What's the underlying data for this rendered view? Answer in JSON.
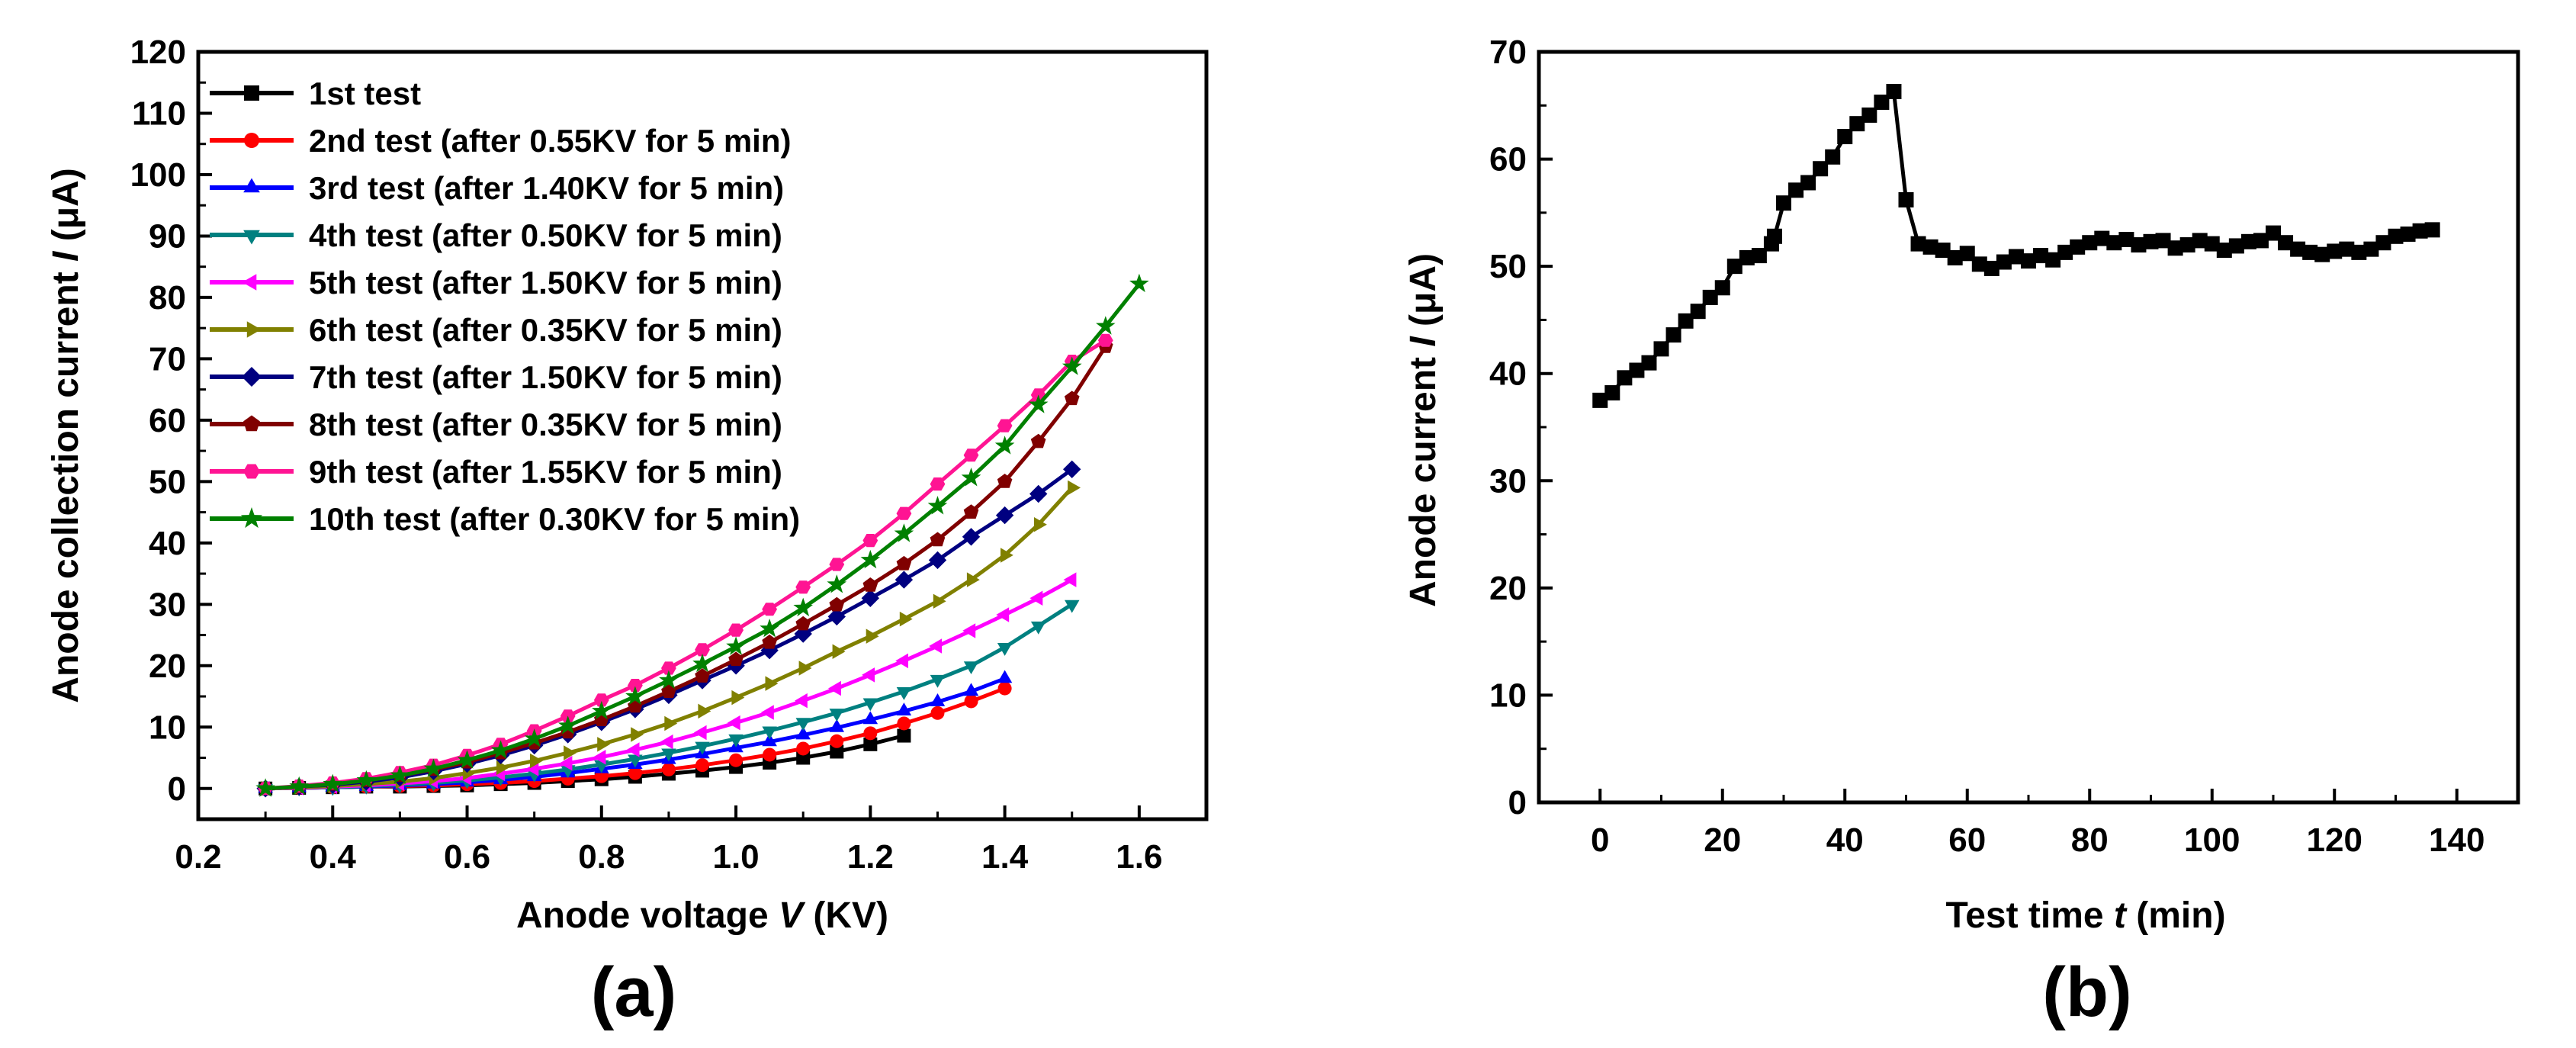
{
  "chart_data": [
    {
      "type": "line",
      "panel_label": "(a)",
      "xlabel": "Anode voltage ",
      "xlabel_italic": "V",
      "xlabel_unit": " (KV)",
      "ylabel": "Anode collection current ",
      "ylabel_italic": "I",
      "ylabel_unit": " (μA)",
      "xlim": [
        0.2,
        1.7
      ],
      "ylim": [
        -5,
        120
      ],
      "xticks": [
        "0.2",
        "0.4",
        "0.6",
        "0.8",
        "1.0",
        "1.2",
        "1.4",
        "1.6"
      ],
      "yticks": [
        "0",
        "10",
        "20",
        "30",
        "40",
        "50",
        "60",
        "70",
        "80",
        "90",
        "100",
        "110",
        "120"
      ],
      "legend_position": "top-left",
      "series": [
        {
          "name": "1st test",
          "color": "#000000",
          "marker": "square",
          "x": [
            0.3,
            0.35,
            0.4,
            0.45,
            0.5,
            0.55,
            0.6,
            0.65,
            0.7,
            0.75,
            0.8,
            0.85,
            0.9,
            0.95,
            1.0,
            1.05,
            1.1,
            1.15,
            1.2,
            1.25
          ],
          "y": [
            0.0,
            0.1,
            0.2,
            0.3,
            0.3,
            0.4,
            0.5,
            0.7,
            0.9,
            1.2,
            1.5,
            1.9,
            2.4,
            2.9,
            3.5,
            4.2,
            5.0,
            6.0,
            7.2,
            8.6
          ]
        },
        {
          "name": "2nd test (after 0.55KV for 5 min)",
          "color": "#ff0000",
          "marker": "circle",
          "x": [
            0.3,
            0.35,
            0.4,
            0.45,
            0.5,
            0.55,
            0.6,
            0.65,
            0.7,
            0.75,
            0.8,
            0.85,
            0.9,
            0.95,
            1.0,
            1.05,
            1.1,
            1.15,
            1.2,
            1.25,
            1.3,
            1.35,
            1.4
          ],
          "y": [
            0.0,
            0.1,
            0.2,
            0.3,
            0.4,
            0.5,
            0.7,
            0.9,
            1.2,
            1.6,
            2.0,
            2.5,
            3.1,
            3.8,
            4.6,
            5.5,
            6.5,
            7.7,
            9.0,
            10.6,
            12.3,
            14.2,
            16.3
          ]
        },
        {
          "name": "3rd test (after 1.40KV for 5 min)",
          "color": "#0000ff",
          "marker": "triangle-up",
          "x": [
            0.3,
            0.35,
            0.4,
            0.45,
            0.5,
            0.55,
            0.6,
            0.65,
            0.7,
            0.75,
            0.8,
            0.85,
            0.9,
            0.95,
            1.0,
            1.05,
            1.1,
            1.15,
            1.2,
            1.25,
            1.3,
            1.35,
            1.4
          ],
          "y": [
            0.0,
            0.1,
            0.2,
            0.3,
            0.5,
            0.7,
            1.0,
            1.4,
            1.9,
            2.5,
            3.2,
            3.9,
            4.7,
            5.6,
            6.6,
            7.6,
            8.7,
            9.9,
            11.2,
            12.6,
            14.1,
            15.8,
            17.9
          ]
        },
        {
          "name": "4th test (after 0.50KV for 5 min)",
          "color": "#008080",
          "marker": "triangle-down",
          "x": [
            0.3,
            0.35,
            0.4,
            0.45,
            0.5,
            0.55,
            0.6,
            0.65,
            0.7,
            0.75,
            0.8,
            0.85,
            0.9,
            0.95,
            1.0,
            1.05,
            1.1,
            1.15,
            1.2,
            1.25,
            1.3,
            1.35,
            1.4,
            1.45,
            1.5
          ],
          "y": [
            0.0,
            0.1,
            0.2,
            0.4,
            0.6,
            0.9,
            1.3,
            1.8,
            2.4,
            3.1,
            3.9,
            4.8,
            5.8,
            6.9,
            8.1,
            9.4,
            10.8,
            12.3,
            14.0,
            15.8,
            17.8,
            20.0,
            23.0,
            26.5,
            30.0
          ]
        },
        {
          "name": "5th test (after 1.50KV for 5 min)",
          "color": "#ff00ff",
          "marker": "triangle-left",
          "x": [
            0.3,
            0.35,
            0.4,
            0.45,
            0.5,
            0.55,
            0.6,
            0.65,
            0.7,
            0.75,
            0.8,
            0.85,
            0.9,
            0.95,
            1.0,
            1.05,
            1.1,
            1.15,
            1.2,
            1.25,
            1.3,
            1.35,
            1.4,
            1.45,
            1.5
          ],
          "y": [
            0.0,
            0.1,
            0.3,
            0.5,
            0.8,
            1.2,
            1.7,
            2.4,
            3.2,
            4.1,
            5.1,
            6.3,
            7.6,
            9.1,
            10.7,
            12.4,
            14.3,
            16.3,
            18.5,
            20.8,
            23.2,
            25.7,
            28.3,
            31.0,
            34.0
          ]
        },
        {
          "name": "6th test (after 0.35KV for 5 min)",
          "color": "#808000",
          "marker": "triangle-right",
          "x": [
            0.3,
            0.35,
            0.4,
            0.45,
            0.5,
            0.55,
            0.6,
            0.65,
            0.7,
            0.75,
            0.8,
            0.85,
            0.9,
            0.95,
            1.0,
            1.05,
            1.1,
            1.15,
            1.2,
            1.25,
            1.3,
            1.35,
            1.4,
            1.45,
            1.5
          ],
          "y": [
            0.0,
            0.2,
            0.4,
            0.7,
            1.1,
            1.7,
            2.5,
            3.4,
            4.5,
            5.8,
            7.2,
            8.8,
            10.6,
            12.6,
            14.8,
            17.1,
            19.6,
            22.3,
            24.8,
            27.6,
            30.5,
            34.0,
            38.0,
            43.0,
            49.0
          ]
        },
        {
          "name": "7th test (after 1.50KV for 5 min)",
          "color": "#000080",
          "marker": "diamond",
          "x": [
            0.3,
            0.35,
            0.4,
            0.45,
            0.5,
            0.55,
            0.6,
            0.65,
            0.7,
            0.75,
            0.8,
            0.85,
            0.9,
            0.95,
            1.0,
            1.05,
            1.1,
            1.15,
            1.2,
            1.25,
            1.3,
            1.35,
            1.4,
            1.45,
            1.5
          ],
          "y": [
            0.0,
            0.3,
            0.6,
            1.1,
            1.8,
            2.8,
            4.0,
            5.4,
            7.0,
            8.8,
            10.8,
            12.9,
            15.2,
            17.6,
            20.0,
            22.5,
            25.2,
            28.0,
            31.0,
            34.0,
            37.2,
            41.0,
            44.5,
            48.0,
            52.0
          ]
        },
        {
          "name": "8th test (after 0.35KV for 5 min)",
          "color": "#800000",
          "marker": "pentagon",
          "x": [
            0.3,
            0.35,
            0.4,
            0.45,
            0.5,
            0.55,
            0.6,
            0.65,
            0.7,
            0.75,
            0.8,
            0.85,
            0.9,
            0.95,
            1.0,
            1.05,
            1.1,
            1.15,
            1.2,
            1.25,
            1.3,
            1.35,
            1.4,
            1.45,
            1.5,
            1.55
          ],
          "y": [
            0.0,
            0.3,
            0.7,
            1.3,
            2.1,
            3.1,
            4.3,
            5.8,
            7.4,
            9.2,
            11.2,
            13.4,
            15.8,
            18.3,
            21.0,
            23.8,
            26.8,
            29.9,
            33.1,
            36.6,
            40.5,
            45.0,
            50.0,
            56.5,
            63.5,
            72.0
          ]
        },
        {
          "name": "9th test (after 1.55KV for 5 min)",
          "color": "#ff1493",
          "marker": "hexagon",
          "x": [
            0.3,
            0.35,
            0.4,
            0.45,
            0.5,
            0.55,
            0.6,
            0.65,
            0.7,
            0.75,
            0.8,
            0.85,
            0.9,
            0.95,
            1.0,
            1.05,
            1.1,
            1.15,
            1.2,
            1.25,
            1.3,
            1.35,
            1.4,
            1.45,
            1.5,
            1.55
          ],
          "y": [
            0.0,
            0.4,
            0.9,
            1.6,
            2.6,
            3.8,
            5.4,
            7.2,
            9.4,
            11.8,
            14.4,
            16.8,
            19.6,
            22.6,
            25.8,
            29.2,
            32.8,
            36.5,
            40.4,
            44.8,
            49.6,
            54.3,
            59.1,
            64.1,
            69.6,
            73.0
          ]
        },
        {
          "name": "10th test (after 0.30KV for 5 min)",
          "color": "#008000",
          "marker": "star",
          "x": [
            0.3,
            0.35,
            0.4,
            0.45,
            0.5,
            0.55,
            0.6,
            0.65,
            0.7,
            0.75,
            0.8,
            0.85,
            0.9,
            0.95,
            1.0,
            1.05,
            1.1,
            1.15,
            1.2,
            1.25,
            1.3,
            1.35,
            1.4,
            1.45,
            1.5,
            1.55,
            1.6
          ],
          "y": [
            0.0,
            0.3,
            0.7,
            1.3,
            2.1,
            3.2,
            4.6,
            6.2,
            8.1,
            10.2,
            12.6,
            15.0,
            17.6,
            20.3,
            23.1,
            26.0,
            29.4,
            33.2,
            37.2,
            41.5,
            46.0,
            50.6,
            55.8,
            62.5,
            68.7,
            75.3,
            82.2
          ]
        }
      ]
    },
    {
      "type": "line",
      "panel_label": "(b)",
      "xlabel": "Test time ",
      "xlabel_italic": "t",
      "xlabel_unit": " (min)",
      "ylabel": "Anode current ",
      "ylabel_italic": "I",
      "ylabel_unit": " (μA)",
      "xlim": [
        -10,
        150
      ],
      "ylim": [
        0,
        70
      ],
      "xticks": [
        "0",
        "20",
        "40",
        "60",
        "80",
        "100",
        "120",
        "140"
      ],
      "yticks": [
        "0",
        "10",
        "20",
        "30",
        "40",
        "50",
        "60",
        "70"
      ],
      "series": [
        {
          "name": "Anode current",
          "color": "#000000",
          "marker": "square",
          "x": [
            0,
            2,
            4,
            6,
            8,
            10,
            12,
            14,
            16,
            18,
            20,
            22,
            24,
            26,
            28,
            28.5,
            30,
            32,
            34,
            36,
            38,
            40,
            42,
            44,
            46,
            48,
            50,
            52,
            54,
            56,
            58,
            60,
            62,
            64,
            66,
            68,
            70,
            72,
            74,
            76,
            78,
            80,
            82,
            84,
            86,
            88,
            90,
            92,
            94,
            96,
            98,
            100,
            102,
            104,
            106,
            108,
            110,
            112,
            114,
            116,
            118,
            120,
            122,
            124,
            126,
            128,
            130,
            132,
            134,
            136
          ],
          "y": [
            37.5,
            38.2,
            39.6,
            40.3,
            41.0,
            42.3,
            43.6,
            44.9,
            45.8,
            47.1,
            48.0,
            50.0,
            50.8,
            51.0,
            52.1,
            52.8,
            55.9,
            57.1,
            57.8,
            59.1,
            60.2,
            62.1,
            63.3,
            64.1,
            65.3,
            66.3,
            56.2,
            52.1,
            51.8,
            51.5,
            50.8,
            51.2,
            50.2,
            49.8,
            50.4,
            50.9,
            50.5,
            51.0,
            50.6,
            51.3,
            51.8,
            52.2,
            52.6,
            52.2,
            52.5,
            52.0,
            52.3,
            52.4,
            51.7,
            52.0,
            52.4,
            52.1,
            51.5,
            51.9,
            52.3,
            52.4,
            53.1,
            52.2,
            51.6,
            51.3,
            51.1,
            51.4,
            51.6,
            51.3,
            51.6,
            52.2,
            52.8,
            53.0,
            53.3,
            53.4
          ]
        }
      ]
    }
  ]
}
